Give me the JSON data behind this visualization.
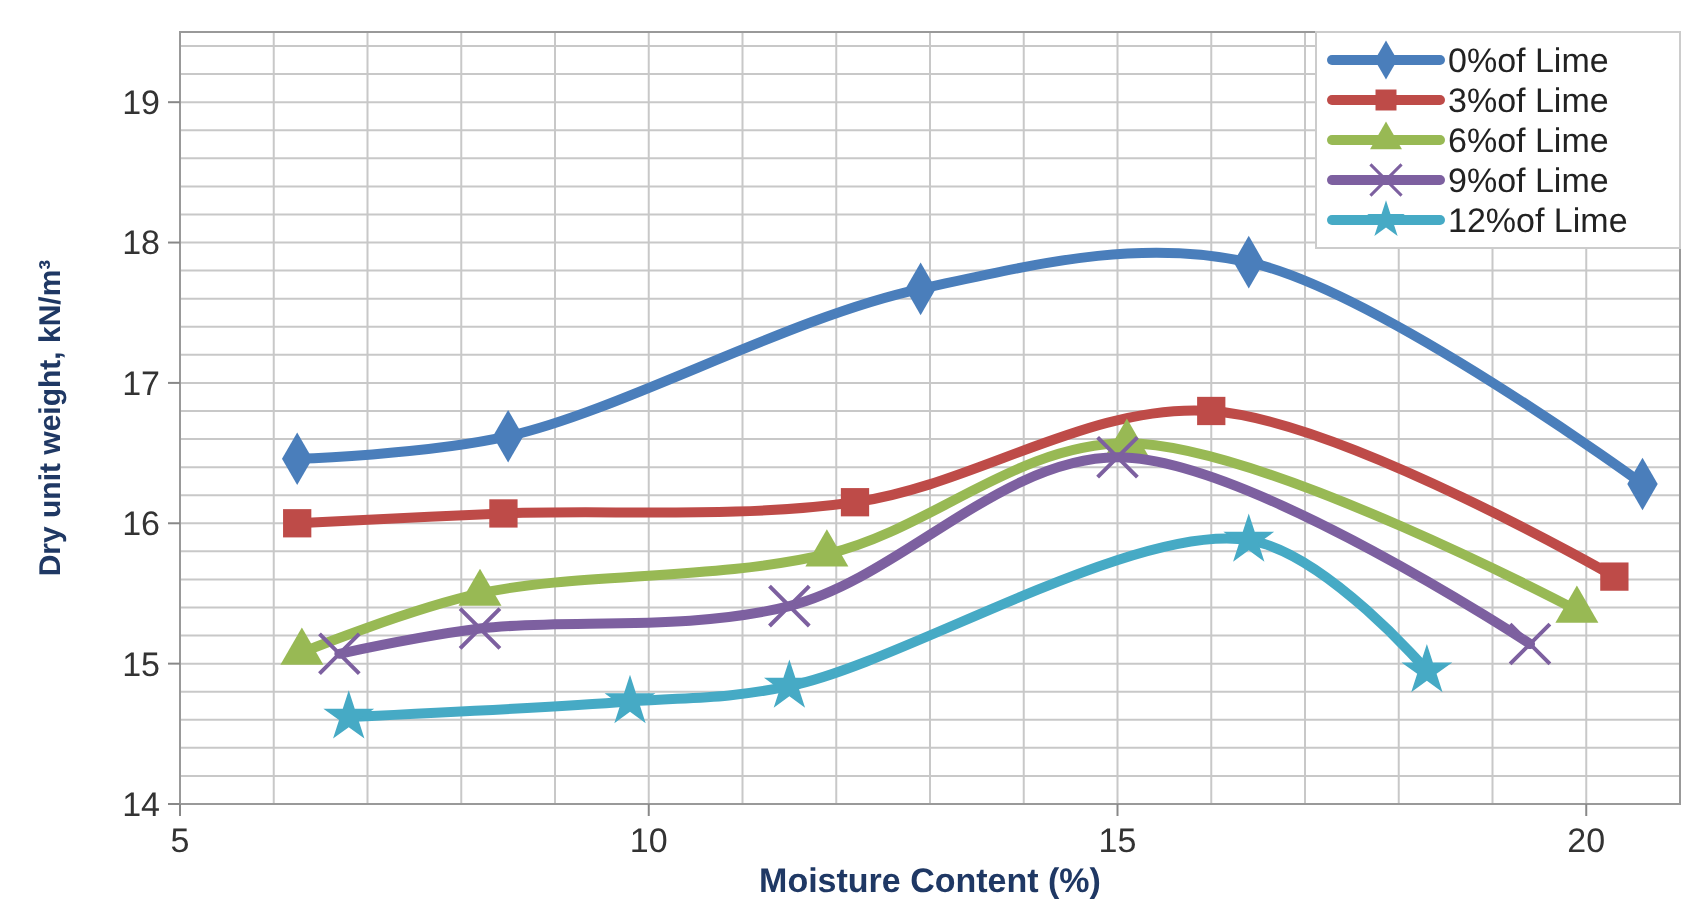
{
  "chart_data": {
    "type": "line",
    "xlabel": "Moisture Content (%)",
    "ylabel": "Dry unit weight, kN/m³",
    "xlim": [
      5,
      21
    ],
    "ylim": [
      14,
      19.5
    ],
    "xticks": [
      5,
      {
        "value": 6,
        "label": null
      },
      {
        "value": 7,
        "label": null
      },
      {
        "value": 8,
        "label": null
      },
      {
        "value": 9,
        "label": null
      },
      10,
      {
        "value": 11,
        "label": null
      },
      {
        "value": 12,
        "label": null
      },
      {
        "value": 13,
        "label": null
      },
      {
        "value": 14,
        "label": null
      },
      15,
      {
        "value": 16,
        "label": null
      },
      {
        "value": 17,
        "label": null
      },
      {
        "value": 18,
        "label": null
      },
      {
        "value": 19,
        "label": null
      },
      20,
      {
        "value": 21,
        "label": null
      }
    ],
    "yticks": [
      14,
      {
        "value": 14.2,
        "label": null
      },
      {
        "value": 14.4,
        "label": null
      },
      {
        "value": 14.6,
        "label": null
      },
      {
        "value": 14.8,
        "label": null
      },
      15,
      {
        "value": 15.2,
        "label": null
      },
      {
        "value": 15.4,
        "label": null
      },
      {
        "value": 15.6,
        "label": null
      },
      {
        "value": 15.8,
        "label": null
      },
      16,
      {
        "value": 16.2,
        "label": null
      },
      {
        "value": 16.4,
        "label": null
      },
      {
        "value": 16.6,
        "label": null
      },
      {
        "value": 16.8,
        "label": null
      },
      17,
      {
        "value": 17.2,
        "label": null
      },
      {
        "value": 17.4,
        "label": null
      },
      {
        "value": 17.6,
        "label": null
      },
      {
        "value": 17.8,
        "label": null
      },
      18,
      {
        "value": 18.2,
        "label": null
      },
      {
        "value": 18.4,
        "label": null
      },
      {
        "value": 18.6,
        "label": null
      },
      {
        "value": 18.8,
        "label": null
      },
      19,
      {
        "value": 19.2,
        "label": null
      },
      {
        "value": 19.4,
        "label": null
      }
    ],
    "grid": true,
    "legend": "top right",
    "line_style": "solid",
    "series": [
      {
        "name": "0%of Lime",
        "color": "#4a7ebb",
        "marker": "diamond",
        "x": [
          6.25,
          8.5,
          12.9,
          16.4,
          20.6
        ],
        "values": [
          16.46,
          16.62,
          17.67,
          17.86,
          16.28
        ]
      },
      {
        "name": "3%of Lime",
        "color": "#be4b48",
        "marker": "square",
        "x": [
          6.25,
          8.45,
          12.2,
          16.0,
          20.3
        ],
        "values": [
          16.0,
          16.07,
          16.15,
          16.8,
          15.62
        ]
      },
      {
        "name": "6%of Lime",
        "color": "#98b954",
        "marker": "triangle",
        "x": [
          6.3,
          8.2,
          11.9,
          15.1,
          19.9
        ],
        "values": [
          15.08,
          15.5,
          15.78,
          16.57,
          15.38
        ]
      },
      {
        "name": "9%of Lime",
        "color": "#7d60a0",
        "marker": "cross",
        "x": [
          6.7,
          8.2,
          11.5,
          15.0,
          19.4
        ],
        "values": [
          15.07,
          15.25,
          15.41,
          16.47,
          15.14
        ]
      },
      {
        "name": "12%of Lime",
        "color": "#46aac5",
        "marker": "star",
        "x": [
          6.8,
          9.8,
          11.5,
          16.4,
          18.3
        ],
        "values": [
          14.62,
          14.73,
          14.84,
          15.88,
          14.95
        ]
      }
    ]
  }
}
